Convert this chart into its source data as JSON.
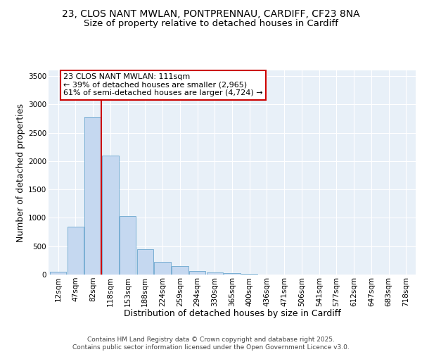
{
  "title_line1": "23, CLOS NANT MWLAN, PONTPRENNAU, CARDIFF, CF23 8NA",
  "title_line2": "Size of property relative to detached houses in Cardiff",
  "xlabel": "Distribution of detached houses by size in Cardiff",
  "ylabel": "Number of detached properties",
  "bar_color": "#c5d8f0",
  "bar_edge_color": "#7aafd4",
  "background_color": "#e8f0f8",
  "vline_color": "#cc0000",
  "annotation_text": "23 CLOS NANT MWLAN: 111sqm\n← 39% of detached houses are smaller (2,965)\n61% of semi-detached houses are larger (4,724) →",
  "annotation_box_color": "#cc0000",
  "categories": [
    "12sqm",
    "47sqm",
    "82sqm",
    "118sqm",
    "153sqm",
    "188sqm",
    "224sqm",
    "259sqm",
    "294sqm",
    "330sqm",
    "365sqm",
    "400sqm",
    "436sqm",
    "471sqm",
    "506sqm",
    "541sqm",
    "577sqm",
    "612sqm",
    "647sqm",
    "683sqm",
    "718sqm"
  ],
  "values": [
    55,
    850,
    2780,
    2100,
    1035,
    450,
    220,
    150,
    60,
    40,
    20,
    10,
    5,
    3,
    2,
    1,
    1,
    0,
    0,
    0,
    0
  ],
  "ylim": [
    0,
    3600
  ],
  "yticks": [
    0,
    500,
    1000,
    1500,
    2000,
    2500,
    3000,
    3500
  ],
  "footer_text": "Contains HM Land Registry data © Crown copyright and database right 2025.\nContains public sector information licensed under the Open Government Licence v3.0.",
  "title_fontsize": 10,
  "subtitle_fontsize": 9.5,
  "axis_label_fontsize": 9,
  "tick_fontsize": 7.5,
  "annotation_fontsize": 8,
  "footer_fontsize": 6.5
}
